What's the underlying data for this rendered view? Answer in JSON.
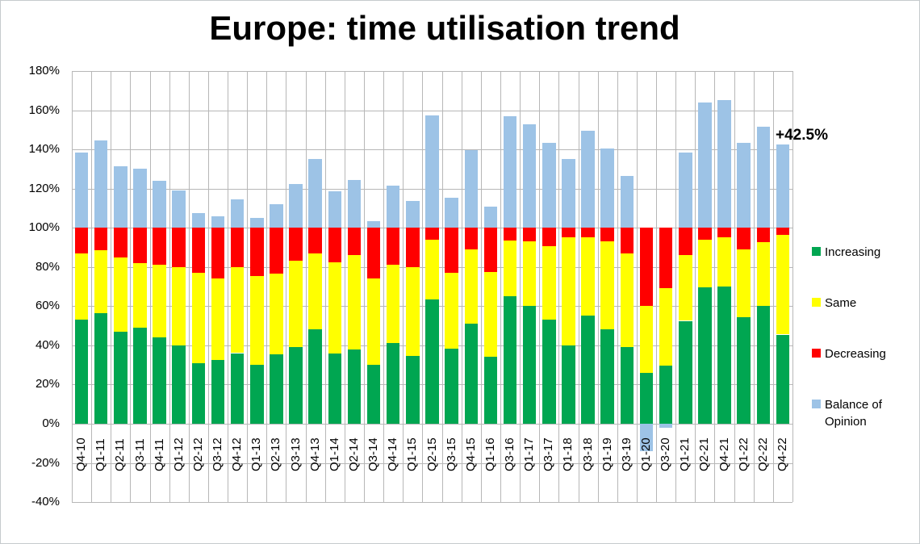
{
  "title": "Europe: time utilisation trend",
  "annotation_label": "+42.5%",
  "colors": {
    "increasing": "#00A651",
    "same": "#FFFF00",
    "decreasing": "#FF0000",
    "balance": "#9DC3E6",
    "grid": "#b7b7b7",
    "text": "#000000",
    "background": "#ffffff"
  },
  "legend": [
    {
      "label": "Increasing",
      "color": "#00A651"
    },
    {
      "label": "Same",
      "color": "#FFFF00"
    },
    {
      "label": "Decreasing",
      "color": "#FF0000"
    },
    {
      "label": "Balance of Opinion",
      "color": "#9DC3E6"
    }
  ],
  "chart_data": {
    "type": "bar",
    "stacked": true,
    "title": "Europe: time utilisation trend",
    "categories": [
      "Q4-10",
      "Q1-11",
      "Q2-11",
      "Q3-11",
      "Q4-11",
      "Q1-12",
      "Q2-12",
      "Q3-12",
      "Q4-12",
      "Q1-13",
      "Q2-13",
      "Q3-13",
      "Q4-13",
      "Q1-14",
      "Q2-14",
      "Q3-14",
      "Q4-14",
      "Q1-15",
      "Q2-15",
      "Q3-15",
      "Q4-15",
      "Q1-16",
      "Q3-16",
      "Q1-17",
      "Q3-17",
      "Q1-18",
      "Q3-18",
      "Q1-19",
      "Q3-19",
      "Q1-20",
      "Q3-20",
      "Q1-21",
      "Q2-21",
      "Q4-21",
      "Q1-22",
      "Q2-22",
      "Q4-22"
    ],
    "series": [
      {
        "name": "Increasing",
        "color": "#00A651",
        "values": [
          53,
          56.5,
          47,
          49,
          44,
          40,
          31,
          32.5,
          36,
          30,
          35.5,
          39,
          48,
          36,
          38,
          30,
          41,
          34.5,
          63.5,
          38.5,
          51,
          34,
          65,
          60,
          53,
          40,
          55,
          48,
          39,
          26,
          29.5,
          52.5,
          69.5,
          70,
          54.5,
          60,
          45.5
        ]
      },
      {
        "name": "Same",
        "color": "#FFFF00",
        "values": [
          34,
          32,
          38,
          33,
          37,
          40,
          46,
          41.5,
          44,
          45.5,
          41,
          44,
          39,
          46.5,
          48,
          44,
          40,
          45.5,
          30.5,
          38.5,
          38,
          43.5,
          28.5,
          33,
          37.5,
          55,
          40,
          45,
          48,
          34,
          39.5,
          33.5,
          24.5,
          25,
          34.5,
          32.5,
          51
        ]
      },
      {
        "name": "Decreasing",
        "color": "#FF0000",
        "values": [
          13,
          11.5,
          15,
          18,
          19,
          20,
          23,
          26,
          20,
          24.5,
          23.5,
          17,
          13,
          17.5,
          14,
          26,
          19,
          20,
          6,
          23,
          11,
          22.5,
          6.5,
          7,
          9.5,
          5,
          5,
          7,
          13,
          40,
          31,
          14,
          6,
          5,
          11,
          7.5,
          3.5
        ]
      },
      {
        "name": "Balance of Opinion",
        "color": "#9DC3E6",
        "values": [
          38.5,
          44.5,
          31.5,
          30,
          24,
          19,
          7.5,
          6,
          14.5,
          5,
          12,
          22.5,
          35,
          18.5,
          24.5,
          3.5,
          21.5,
          13.5,
          57.5,
          15.5,
          39.5,
          11,
          57,
          53,
          43.5,
          35,
          49.5,
          40.5,
          26.5,
          -14,
          -2,
          38.5,
          64,
          65,
          43.5,
          51.5,
          42.5
        ]
      }
    ],
    "ylim": [
      -40,
      180
    ],
    "ytick_step": 20,
    "ytick_suffix": "%",
    "grid": true,
    "legend_position": "right",
    "annotation": {
      "text": "+42.5%",
      "target_category": "Q4-22",
      "y_value": 142.5
    }
  }
}
